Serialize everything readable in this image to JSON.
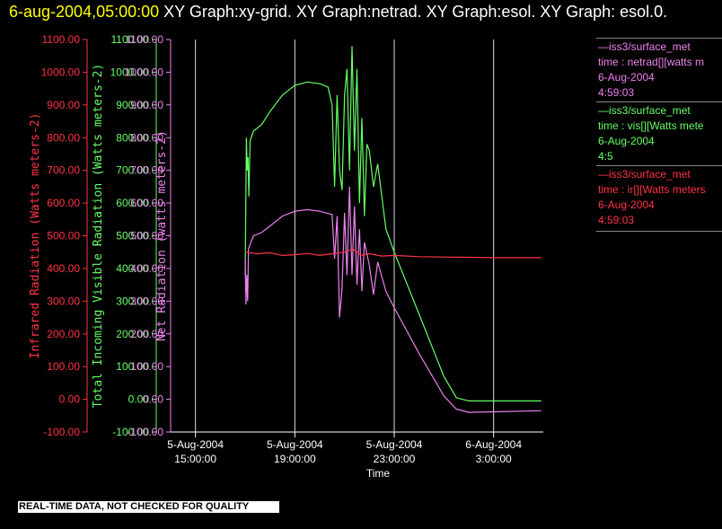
{
  "title": {
    "timestamp": "6-aug-2004,05:00:00",
    "text": " XY Graph:xy-grid.  XY Graph:netrad.  XY Graph:esol.  XY Graph: esol.0."
  },
  "footer": "REAL-TIME DATA, NOT CHECKED FOR QUALITY",
  "legend": [
    {
      "lines": [
        "—iss3/surface_met",
        "time : netrad[][watts m",
        "6-Aug-2004",
        "4:59:03"
      ],
      "color": "#ee82ee"
    },
    {
      "lines": [
        "—iss3/surface_met",
        "time : vis[][Watts mete",
        "6-Aug-2004",
        "4:5"
      ],
      "color": "#66ff66"
    },
    {
      "lines": [
        "—iss3/surface_met",
        "time : ir[][Watts meters",
        "6-Aug-2004",
        "4:59:03"
      ],
      "color": "#ff3344"
    }
  ],
  "chart_data": {
    "type": "line",
    "xlabel": "Time",
    "x_ticks": [
      {
        "at": "2004-08-05T15:00",
        "date": "5-Aug-2004",
        "time": "15:00:00"
      },
      {
        "at": "2004-08-05T19:00",
        "date": "5-Aug-2004",
        "time": "19:00:00"
      },
      {
        "at": "2004-08-05T23:00",
        "date": "5-Aug-2004",
        "time": "23:00:00"
      },
      {
        "at": "2004-08-06T03:00",
        "date": "6-Aug-2004",
        "time": "3:00:00"
      }
    ],
    "xlim": [
      "2004-08-05T14:00",
      "2004-08-06T05:00"
    ],
    "grid_x": true,
    "y_axes": [
      {
        "label": "Infrared Radiation (Watts meters-2)",
        "color": "#ff3344",
        "ylim": [
          -100,
          1100
        ],
        "ticks": [
          "-100.00",
          "0.00",
          "100.00",
          "200.00",
          "300.00",
          "400.00",
          "500.00",
          "600.00",
          "700.00",
          "800.00",
          "900.00",
          "1000.00",
          "1100.00"
        ]
      },
      {
        "label": "Total Incoming Visible Radiation (Watts meters-2)",
        "color": "#66ff66",
        "ylim": [
          -100,
          1100
        ],
        "ticks": [
          "-100.00",
          "0.00",
          "100.00",
          "200.00",
          "300.00",
          "400.00",
          "500.00",
          "600.00",
          "700.00",
          "800.00",
          "900.00",
          "1000.00",
          "1100.00"
        ]
      },
      {
        "label": "Net Radiation (watts meters-2)",
        "color": "#ee82ee",
        "ylim": [
          -100,
          1100
        ],
        "ticks": [
          "-100.00",
          "0.00",
          "100.00",
          "200.00",
          "300.00",
          "400.00",
          "500.00",
          "600.00",
          "700.00",
          "800.00",
          "900.00",
          "1000.00",
          "1100.00"
        ]
      }
    ],
    "series": [
      {
        "color": "#66ff66",
        "points": [
          [
            "2004-08-05T17:00",
            380
          ],
          [
            "2004-08-05T17:03",
            800
          ],
          [
            "2004-08-05T17:05",
            700
          ],
          [
            "2004-08-05T17:07",
            740
          ],
          [
            "2004-08-05T17:09",
            620
          ],
          [
            "2004-08-05T17:12",
            790
          ],
          [
            "2004-08-05T17:20",
            820
          ],
          [
            "2004-08-05T17:40",
            840
          ],
          [
            "2004-08-05T18:00",
            880
          ],
          [
            "2004-08-05T18:30",
            930
          ],
          [
            "2004-08-05T19:00",
            960
          ],
          [
            "2004-08-05T19:30",
            970
          ],
          [
            "2004-08-05T20:00",
            965
          ],
          [
            "2004-08-05T20:20",
            955
          ],
          [
            "2004-08-05T20:30",
            900
          ],
          [
            "2004-08-05T20:36",
            650
          ],
          [
            "2004-08-05T20:42",
            930
          ],
          [
            "2004-08-05T20:48",
            700
          ],
          [
            "2004-08-05T20:54",
            640
          ],
          [
            "2004-08-05T21:00",
            930
          ],
          [
            "2004-08-05T21:06",
            1010
          ],
          [
            "2004-08-05T21:12",
            700
          ],
          [
            "2004-08-05T21:18",
            1080
          ],
          [
            "2004-08-05T21:24",
            760
          ],
          [
            "2004-08-05T21:30",
            1010
          ],
          [
            "2004-08-05T21:36",
            600
          ],
          [
            "2004-08-05T21:42",
            860
          ],
          [
            "2004-08-05T21:48",
            560
          ],
          [
            "2004-08-05T21:54",
            780
          ],
          [
            "2004-08-05T22:00",
            760
          ],
          [
            "2004-08-05T22:10",
            650
          ],
          [
            "2004-08-05T22:20",
            720
          ],
          [
            "2004-08-05T22:40",
            520
          ],
          [
            "2004-08-05T23:00",
            450
          ],
          [
            "2004-08-06T00:00",
            260
          ],
          [
            "2004-08-06T01:00",
            70
          ],
          [
            "2004-08-06T01:30",
            5
          ],
          [
            "2004-08-06T02:00",
            -5
          ],
          [
            "2004-08-06T03:00",
            -5
          ],
          [
            "2004-08-06T04:55",
            -5
          ]
        ]
      },
      {
        "color": "#ee82ee",
        "points": [
          [
            "2004-08-05T17:00",
            430
          ],
          [
            "2004-08-05T17:02",
            290
          ],
          [
            "2004-08-05T17:04",
            380
          ],
          [
            "2004-08-05T17:06",
            300
          ],
          [
            "2004-08-05T17:08",
            460
          ],
          [
            "2004-08-05T17:20",
            500
          ],
          [
            "2004-08-05T17:40",
            510
          ],
          [
            "2004-08-05T18:00",
            530
          ],
          [
            "2004-08-05T18:30",
            560
          ],
          [
            "2004-08-05T19:00",
            575
          ],
          [
            "2004-08-05T19:30",
            580
          ],
          [
            "2004-08-05T20:00",
            575
          ],
          [
            "2004-08-05T20:30",
            565
          ],
          [
            "2004-08-05T20:36",
            430
          ],
          [
            "2004-08-05T20:42",
            560
          ],
          [
            "2004-08-05T20:48",
            250
          ],
          [
            "2004-08-05T20:54",
            340
          ],
          [
            "2004-08-05T21:00",
            570
          ],
          [
            "2004-08-05T21:06",
            380
          ],
          [
            "2004-08-05T21:12",
            650
          ],
          [
            "2004-08-05T21:18",
            380
          ],
          [
            "2004-08-05T21:24",
            590
          ],
          [
            "2004-08-05T21:30",
            350
          ],
          [
            "2004-08-05T21:36",
            520
          ],
          [
            "2004-08-05T21:42",
            330
          ],
          [
            "2004-08-05T21:48",
            480
          ],
          [
            "2004-08-05T22:00",
            410
          ],
          [
            "2004-08-05T22:10",
            320
          ],
          [
            "2004-08-05T22:20",
            420
          ],
          [
            "2004-08-05T22:40",
            330
          ],
          [
            "2004-08-05T23:00",
            280
          ],
          [
            "2004-08-06T00:00",
            140
          ],
          [
            "2004-08-06T01:00",
            10
          ],
          [
            "2004-08-06T01:30",
            -30
          ],
          [
            "2004-08-06T02:00",
            -40
          ],
          [
            "2004-08-06T04:55",
            -35
          ]
        ]
      },
      {
        "color": "#ff3344",
        "points": [
          [
            "2004-08-05T17:00",
            450
          ],
          [
            "2004-08-05T17:30",
            445
          ],
          [
            "2004-08-05T18:00",
            448
          ],
          [
            "2004-08-05T18:30",
            440
          ],
          [
            "2004-08-05T19:00",
            442
          ],
          [
            "2004-08-05T19:30",
            446
          ],
          [
            "2004-08-05T20:00",
            440
          ],
          [
            "2004-08-05T20:30",
            445
          ],
          [
            "2004-08-05T21:00",
            450
          ],
          [
            "2004-08-05T21:20",
            460
          ],
          [
            "2004-08-05T21:40",
            440
          ],
          [
            "2004-08-05T22:00",
            445
          ],
          [
            "2004-08-05T22:30",
            438
          ],
          [
            "2004-08-05T23:00",
            440
          ],
          [
            "2004-08-06T00:00",
            436
          ],
          [
            "2004-08-06T01:00",
            435
          ],
          [
            "2004-08-06T02:00",
            434
          ],
          [
            "2004-08-06T03:00",
            433
          ],
          [
            "2004-08-06T04:55",
            433
          ]
        ]
      }
    ]
  }
}
